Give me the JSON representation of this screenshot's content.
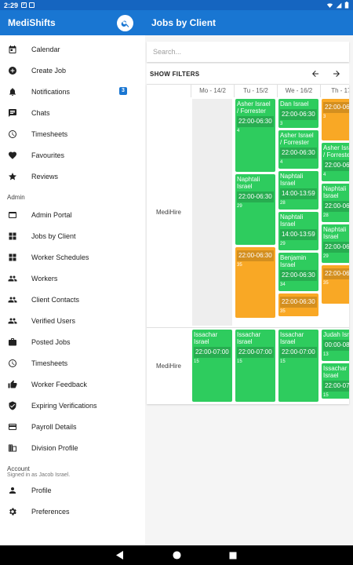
{
  "status_bar": {
    "time": "2:29"
  },
  "app": {
    "title": "MediShifts"
  },
  "page": {
    "title": "Jobs by Client"
  },
  "sidebar": {
    "items": [
      {
        "label": "Calendar",
        "icon": "calendar-icon"
      },
      {
        "label": "Create Job",
        "icon": "add-circle-icon"
      },
      {
        "label": "Notifications",
        "icon": "bell-icon",
        "badge": "3"
      },
      {
        "label": "Chats",
        "icon": "chat-icon"
      },
      {
        "label": "Timesheets",
        "icon": "timer-icon"
      },
      {
        "label": "Favourites",
        "icon": "heart-icon"
      },
      {
        "label": "Reviews",
        "icon": "star-icon"
      }
    ],
    "admin_label": "Admin",
    "admin_items": [
      {
        "label": "Admin Portal",
        "icon": "portal-icon"
      },
      {
        "label": "Jobs by Client",
        "icon": "grid-icon"
      },
      {
        "label": "Worker Schedules",
        "icon": "grid-icon"
      },
      {
        "label": "Workers",
        "icon": "people-icon"
      },
      {
        "label": "Client Contacts",
        "icon": "people-icon"
      },
      {
        "label": "Verified Users",
        "icon": "people-icon"
      },
      {
        "label": "Posted Jobs",
        "icon": "briefcase-icon"
      },
      {
        "label": "Timesheets",
        "icon": "timer-icon"
      },
      {
        "label": "Worker Feedback",
        "icon": "thumb-up-icon"
      },
      {
        "label": "Expiring Verifications",
        "icon": "verified-icon"
      },
      {
        "label": "Payroll Details",
        "icon": "card-icon"
      },
      {
        "label": "Division Profile",
        "icon": "building-icon"
      }
    ],
    "account_label": "Account",
    "signed_in": "Signed in as Jacob Israel.",
    "account_items": [
      {
        "label": "Profile",
        "icon": "person-icon"
      },
      {
        "label": "Preferences",
        "icon": "gear-icon"
      }
    ]
  },
  "main": {
    "search_placeholder": "Search...",
    "filters_label": "SHOW FILTERS",
    "days": [
      "Mo - 14/2",
      "Tu - 15/2",
      "We - 16/2",
      "Th - 17/"
    ],
    "rows": [
      {
        "client": "MediHire",
        "columns": [
          [],
          [
            {
              "name": "Asher Israel / Forrester",
              "time": "22:00-06:30",
              "num": "4",
              "color": "green"
            },
            {
              "name": "Naphtali Israel",
              "time": "22:00-06:30",
              "num": "29",
              "color": "green"
            },
            {
              "name": "",
              "time": "22:00-06:30",
              "num": "35",
              "color": "orange"
            }
          ],
          [
            {
              "name": "Dan Israel",
              "time": "22:00-06:30",
              "num": "3",
              "color": "green"
            },
            {
              "name": "Asher Israel / Forrester",
              "time": "22:00-06:30",
              "num": "4",
              "color": "green"
            },
            {
              "name": "Naphtali Israel",
              "time": "14:00-13:59",
              "num": "28",
              "color": "green"
            },
            {
              "name": "Naphtali Israel",
              "time": "14:00-13:59",
              "num": "29",
              "color": "green"
            },
            {
              "name": "Benjamin Israel",
              "time": "22:00-06:30",
              "num": "34",
              "color": "green"
            },
            {
              "name": "",
              "time": "22:00-06:30",
              "num": "35",
              "color": "orange"
            }
          ],
          [
            {
              "name": "",
              "time": "22:00-06",
              "num": "3",
              "color": "orange"
            },
            {
              "name": "Asher Israel / Forrester",
              "time": "22:00-06",
              "num": "4",
              "color": "green"
            },
            {
              "name": "Naphtali Israel",
              "time": "22:00-06",
              "num": "28",
              "color": "green"
            },
            {
              "name": "Naphtali Israel",
              "time": "22:00-06",
              "num": "29",
              "color": "green"
            },
            {
              "name": "",
              "time": "22:00-06",
              "num": "35",
              "color": "orange"
            }
          ]
        ]
      },
      {
        "client": "MediHire",
        "columns": [
          [
            {
              "name": "Issachar Israel",
              "time": "22:00-07:00",
              "num": "15",
              "color": "green"
            }
          ],
          [
            {
              "name": "Issachar Israel",
              "time": "22:00-07:00",
              "num": "15",
              "color": "green"
            }
          ],
          [
            {
              "name": "Issachar Israel",
              "time": "22:00-07:00",
              "num": "15",
              "color": "green"
            }
          ],
          [
            {
              "name": "Judah Isra",
              "time": "00:00-08",
              "num": "13",
              "color": "green"
            },
            {
              "name": "Issachar Israel",
              "time": "22:00-07",
              "num": "15",
              "color": "green"
            }
          ]
        ]
      }
    ]
  },
  "colors": {
    "primary": "#1976d2",
    "green": "#2ecc5e",
    "orange": "#f9a825"
  }
}
